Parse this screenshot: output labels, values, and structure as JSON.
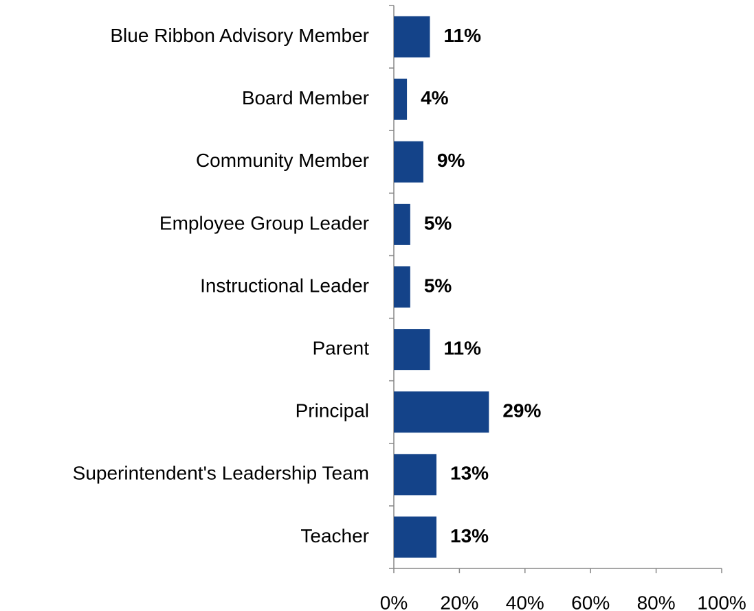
{
  "chart_data": {
    "type": "bar",
    "orientation": "horizontal",
    "categories": [
      "Blue Ribbon Advisory Member",
      "Board Member",
      "Community Member",
      "Employee Group Leader",
      "Instructional Leader",
      "Parent",
      "Principal",
      "Superintendent's Leadership Team",
      "Teacher"
    ],
    "values": [
      11,
      4,
      9,
      5,
      5,
      11,
      29,
      13,
      13
    ],
    "value_labels": [
      "11%",
      "4%",
      "9%",
      "5%",
      "5%",
      "11%",
      "29%",
      "13%",
      "13%"
    ],
    "color": "#144389",
    "xlim": [
      0,
      100
    ],
    "xticks": [
      {
        "value": 0,
        "label": "0%"
      },
      {
        "value": 20,
        "label": "20%"
      },
      {
        "value": 40,
        "label": "40%"
      },
      {
        "value": 60,
        "label": "60%"
      },
      {
        "value": 80,
        "label": "80%"
      },
      {
        "value": 100,
        "label": "100%"
      }
    ],
    "grid": false
  }
}
